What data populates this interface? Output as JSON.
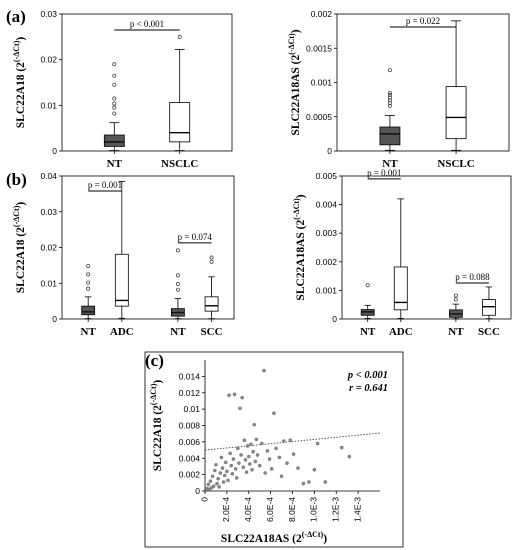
{
  "panel_labels": {
    "a": "(a)",
    "b": "(b)",
    "c": "(c)"
  },
  "chart_data": [
    {
      "type": "box",
      "id": "a1",
      "ylabel": "SLC22A18 (2^(-ΔCt))",
      "ylabel_main": "SLC22A18 (2",
      "ylabel_sup": "(-ΔCt)",
      "ylabel_close": ")",
      "ylim": [
        0,
        0.03
      ],
      "yticks": [
        0,
        0.01,
        0.02,
        0.03
      ],
      "ytick_labels": [
        "0",
        "0.01",
        "0.02",
        "0.03"
      ],
      "categories": [
        "NT",
        "NSCLC"
      ],
      "boxes": [
        {
          "label": "NT",
          "fill": "#555555",
          "min": 0.0001,
          "q1": 0.001,
          "median": 0.002,
          "q3": 0.0035,
          "max": 0.0062,
          "outliers": [
            0.0082,
            0.0095,
            0.0104,
            0.0115,
            0.0145,
            0.0165,
            0.019
          ]
        },
        {
          "label": "NSCLC",
          "fill": "#ffffff",
          "min": 0.0001,
          "q1": 0.002,
          "median": 0.004,
          "q3": 0.0106,
          "max": 0.0222,
          "outliers": [
            0.025
          ]
        }
      ],
      "comparisons": [
        {
          "from": 0,
          "to": 1,
          "label": "p < 0.001",
          "y": 0.0265
        }
      ]
    },
    {
      "type": "box",
      "id": "a2",
      "ylabel": "SLC22A18AS (2^(-ΔCt))",
      "ylabel_main": "SLC22A18AS (2",
      "ylabel_sup": "(-ΔCt)",
      "ylabel_close": ")",
      "ylim": [
        0,
        0.002
      ],
      "yticks": [
        0,
        0.0005,
        0.001,
        0.0015,
        0.002
      ],
      "ytick_labels": [
        "0",
        "0.0005",
        "0.001",
        "0.0015",
        "0.002"
      ],
      "categories": [
        "NT",
        "NSCLC"
      ],
      "boxes": [
        {
          "label": "NT",
          "fill": "#555555",
          "min": 1e-05,
          "q1": 9e-05,
          "median": 0.00025,
          "q3": 0.00035,
          "max": 0.00052,
          "outliers": [
            0.00066,
            0.0007,
            0.00074,
            0.00078,
            0.00082,
            0.00085,
            0.00118
          ]
        },
        {
          "label": "NSCLC",
          "fill": "#ffffff",
          "min": 1e-05,
          "q1": 0.00018,
          "median": 0.00049,
          "q3": 0.00094,
          "max": 0.0019,
          "outliers": []
        }
      ],
      "comparisons": [
        {
          "from": 0,
          "to": 1,
          "label": "p = 0.022",
          "y": 0.00181
        }
      ]
    },
    {
      "type": "box",
      "id": "b1",
      "ylabel": "SLC22A18 (2^(-ΔCt))",
      "ylabel_main": "SLC22A18 (2",
      "ylabel_sup": "(-ΔCt)",
      "ylabel_close": ")",
      "ylim": [
        0,
        0.04
      ],
      "yticks": [
        0,
        0.01,
        0.02,
        0.03,
        0.04
      ],
      "ytick_labels": [
        "0",
        "0.01",
        "0.02",
        "0.03",
        "0.04"
      ],
      "categories": [
        "NT",
        "ADC",
        "NT",
        "SCC"
      ],
      "positions": [
        0.7,
        1.6,
        3.1,
        4.0
      ],
      "boxes": [
        {
          "label": "NT",
          "fill": "#555555",
          "min": 0.0001,
          "q1": 0.0012,
          "median": 0.002,
          "q3": 0.0036,
          "max": 0.0062,
          "outliers": [
            0.0085,
            0.0102,
            0.0125,
            0.0148
          ]
        },
        {
          "label": "ADC",
          "fill": "#ffffff",
          "min": 0.0002,
          "q1": 0.0036,
          "median": 0.0052,
          "q3": 0.0181,
          "max": 0.0385,
          "outliers": []
        },
        {
          "label": "NT",
          "fill": "#555555",
          "min": 0.0001,
          "q1": 0.0008,
          "median": 0.0018,
          "q3": 0.0029,
          "max": 0.0057,
          "outliers": [
            0.0082,
            0.0098,
            0.0122,
            0.0192
          ]
        },
        {
          "label": "SCC",
          "fill": "#ffffff",
          "min": 0.0001,
          "q1": 0.0022,
          "median": 0.0037,
          "q3": 0.0062,
          "max": 0.0118,
          "outliers": [
            0.016,
            0.0172
          ]
        }
      ],
      "comparisons": [
        {
          "from": 0,
          "to": 1,
          "label": "p = 0.001",
          "y": 0.0358
        },
        {
          "from": 2,
          "to": 3,
          "label": "p = 0.074",
          "y": 0.0213
        }
      ]
    },
    {
      "type": "box",
      "id": "b2",
      "ylabel": "SLC22A18AS (2^(-ΔCt))",
      "ylabel_main": "SLC22A18AS (2",
      "ylabel_sup": "(-ΔCt)",
      "ylabel_close": ")",
      "ylim": [
        0,
        0.005
      ],
      "yticks": [
        0,
        0.001,
        0.002,
        0.003,
        0.004,
        0.005
      ],
      "ytick_labels": [
        "0",
        "0.001",
        "0.002",
        "0.003",
        "0.004",
        "0.005"
      ],
      "categories": [
        "NT",
        "ADC",
        "NT",
        "SCC"
      ],
      "positions": [
        0.7,
        1.6,
        3.1,
        4.0
      ],
      "boxes": [
        {
          "label": "NT",
          "fill": "#555555",
          "min": 2e-05,
          "q1": 0.00013,
          "median": 0.00025,
          "q3": 0.00033,
          "max": 0.00048,
          "outliers": [
            0.00118
          ]
        },
        {
          "label": "ADC",
          "fill": "#ffffff",
          "min": 2e-05,
          "q1": 0.00032,
          "median": 0.00058,
          "q3": 0.00182,
          "max": 0.0042,
          "outliers": []
        },
        {
          "label": "NT",
          "fill": "#555555",
          "min": 1e-05,
          "q1": 6e-05,
          "median": 0.00018,
          "q3": 0.00032,
          "max": 0.00052,
          "outliers": [
            0.00068,
            0.00082
          ]
        },
        {
          "label": "SCC",
          "fill": "#ffffff",
          "min": 1e-05,
          "q1": 0.00013,
          "median": 0.00043,
          "q3": 0.00068,
          "max": 0.00112,
          "outliers": []
        }
      ],
      "comparisons": [
        {
          "from": 0,
          "to": 1,
          "label": "p = 0.001",
          "y": 0.0049
        },
        {
          "from": 2,
          "to": 3,
          "label": "p = 0.088",
          "y": 0.00126
        }
      ]
    },
    {
      "type": "scatter",
      "id": "c",
      "xlabel": "SLC22A18AS (2^(-ΔCt))",
      "xlabel_main": "SLC22A18AS (2",
      "xlabel_sup": "(-ΔCt)",
      "xlabel_close": ")",
      "ylabel": "SLC22A18 (2^(-ΔCt))",
      "ylabel_main": "SLC22A18 (2",
      "ylabel_sup": "(-ΔCt)",
      "ylabel_close": ")",
      "xlim": [
        0,
        0.0016
      ],
      "ylim": [
        0,
        0.016
      ],
      "xticks": [
        0,
        0.0002,
        0.0004,
        0.0006,
        0.0008,
        0.001,
        0.0012,
        0.0014
      ],
      "xtick_labels": [
        "0",
        "2.0E-4",
        "4.0E-4",
        "6.0E-4",
        "8.0E-4",
        "1.0E-3",
        "1.2E-3",
        "1.4E-3"
      ],
      "yticks": [
        0,
        0.002,
        0.004,
        0.006,
        0.008,
        0.01,
        0.012,
        0.014
      ],
      "ytick_labels": [
        "0",
        "0.002",
        "0.004",
        "0.006",
        "0.008",
        "0.01",
        "0.012",
        "0.014"
      ],
      "annotations": [
        "p < 0.001",
        "r = 0.641"
      ],
      "trendline": {
        "style": "dotted",
        "intercept": 0.005,
        "slope": 1.3
      },
      "points": [
        [
          2e-05,
          0.0003
        ],
        [
          3e-05,
          0.0008
        ],
        [
          4e-05,
          0.0002
        ],
        [
          5e-05,
          0.0012
        ],
        [
          6e-05,
          0.0004
        ],
        [
          7e-05,
          0.0018
        ],
        [
          8e-05,
          0.0006
        ],
        [
          9e-05,
          0.0025
        ],
        [
          0.0001,
          0.0032
        ],
        [
          0.00011,
          0.0009
        ],
        [
          0.00012,
          0.0015
        ],
        [
          0.00013,
          0.0005
        ],
        [
          0.00014,
          0.0022
        ],
        [
          0.00015,
          0.0041
        ],
        [
          0.00016,
          0.0028
        ],
        [
          0.00017,
          0.0011
        ],
        [
          0.00018,
          0.0019
        ],
        [
          0.00019,
          0.0035
        ],
        [
          0.0002,
          0.0024
        ],
        [
          0.00021,
          0.0013
        ],
        [
          0.00022,
          0.0117
        ],
        [
          0.00023,
          0.0046
        ],
        [
          0.00024,
          0.0031
        ],
        [
          0.00025,
          0.0021
        ],
        [
          0.00026,
          0.0039
        ],
        [
          0.00027,
          0.0118
        ],
        [
          0.00028,
          0.0027
        ],
        [
          0.00029,
          0.0016
        ],
        [
          0.0003,
          0.0052
        ],
        [
          0.00031,
          0.0034
        ],
        [
          0.00032,
          0.0101
        ],
        [
          0.00033,
          0.0044
        ],
        [
          0.00034,
          0.0114
        ],
        [
          0.00035,
          0.0029
        ],
        [
          0.00036,
          0.0062
        ],
        [
          0.00037,
          0.0038
        ],
        [
          0.00038,
          0.0023
        ],
        [
          0.00039,
          0.0055
        ],
        [
          0.0004,
          0.0042
        ],
        [
          0.00041,
          0.0033
        ],
        [
          0.00042,
          0.0057
        ],
        [
          0.00043,
          0.0026
        ],
        [
          0.00044,
          0.0048
        ],
        [
          0.00045,
          0.0081
        ],
        [
          0.00046,
          0.0036
        ],
        [
          0.00047,
          0.0063
        ],
        [
          0.00048,
          0.0044
        ],
        [
          0.0005,
          0.0031
        ],
        [
          0.00052,
          0.0058
        ],
        [
          0.00054,
          0.0147
        ],
        [
          0.00055,
          0.0022
        ],
        [
          0.00057,
          0.0049
        ],
        [
          0.00059,
          0.0039
        ],
        [
          0.00061,
          0.0027
        ],
        [
          0.00063,
          0.0095
        ],
        [
          0.00065,
          0.0052
        ],
        [
          0.00068,
          0.0041
        ],
        [
          0.0007,
          0.0018
        ],
        [
          0.00072,
          0.0061
        ],
        [
          0.00075,
          0.0034
        ],
        [
          0.00078,
          0.0062
        ],
        [
          0.00081,
          0.0045
        ],
        [
          0.00085,
          0.0028
        ],
        [
          0.0009,
          0.0009
        ],
        [
          0.00095,
          0.0011
        ],
        [
          0.001,
          0.0026
        ],
        [
          0.00103,
          0.0058
        ],
        [
          0.0011,
          0.0011
        ],
        [
          0.00125,
          0.0053
        ],
        [
          0.00132,
          0.0042
        ]
      ]
    }
  ]
}
